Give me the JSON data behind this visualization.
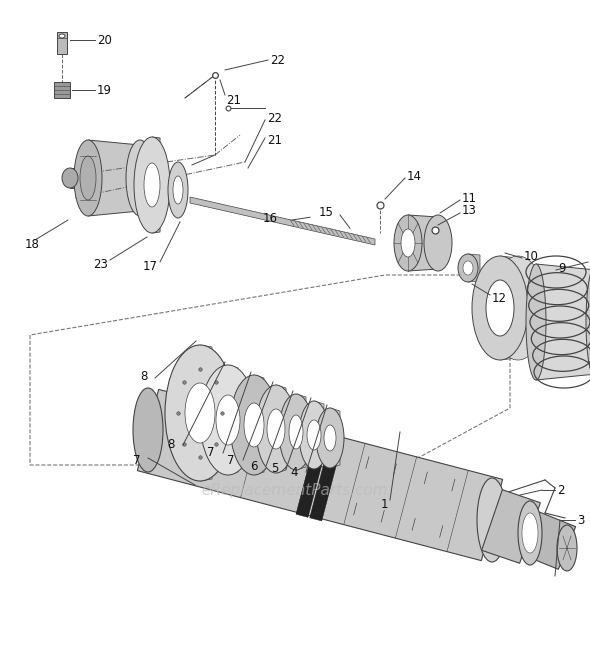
{
  "bg_color": "#ffffff",
  "line_color": "#444444",
  "part_fill": "#cccccc",
  "part_dark": "#aaaaaa",
  "part_light": "#e8e8e8",
  "watermark_text": "eReplacementParts.com",
  "watermark_color": "#bbbbbb",
  "watermark_fontsize": 11,
  "label_fontsize": 8.5,
  "label_color": "#111111",
  "fig_w": 5.9,
  "fig_h": 6.57,
  "dpi": 100
}
